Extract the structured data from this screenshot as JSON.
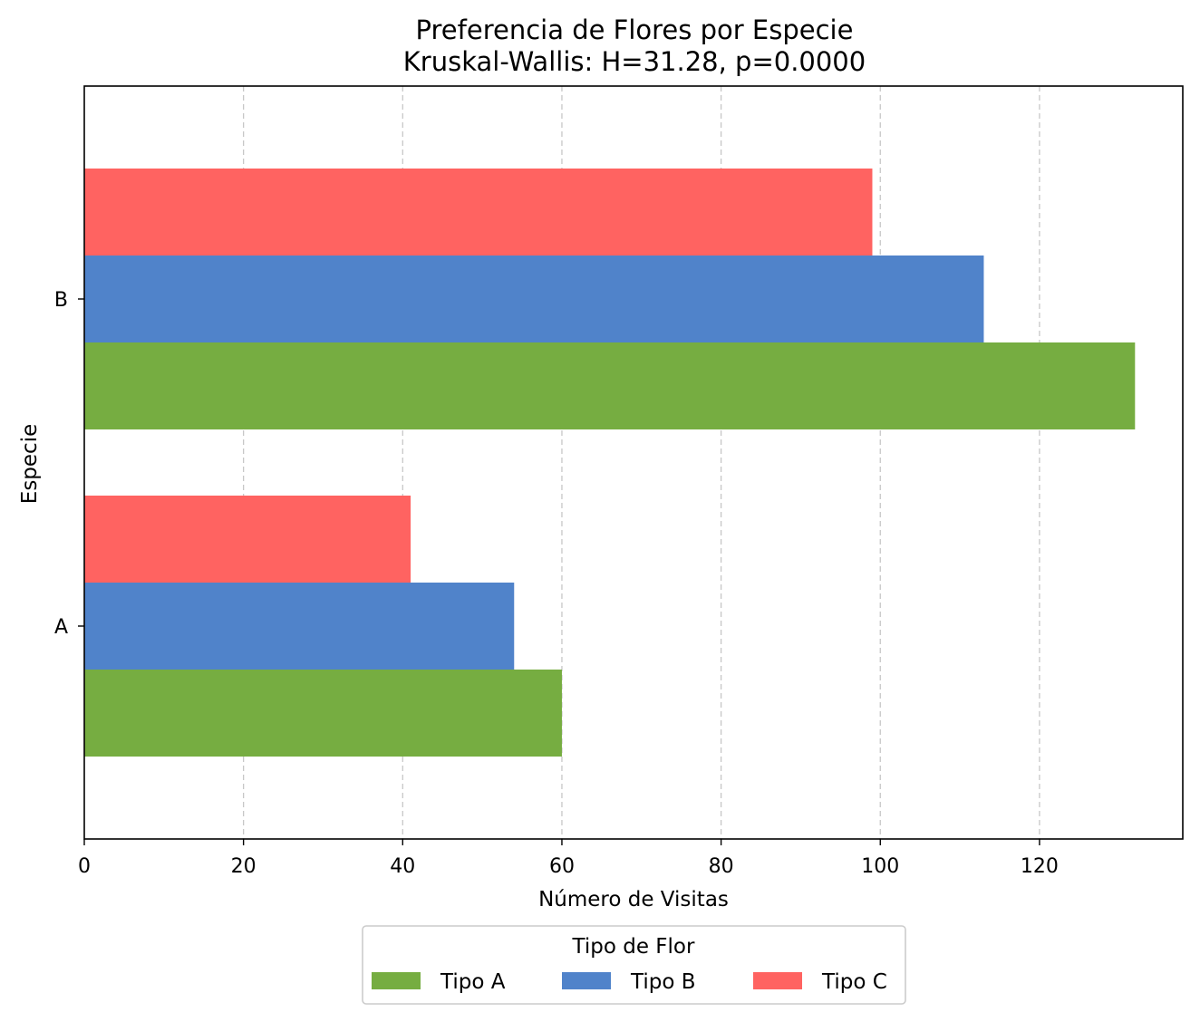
{
  "chart_data": {
    "type": "bar",
    "orientation": "horizontal",
    "title": "Preferencia de Flores por Especie",
    "subtitle": "Kruskal-Wallis: H=31.28, p=0.0000",
    "xlabel": "Número de Visitas",
    "ylabel": "Especie",
    "categories": [
      "A",
      "B"
    ],
    "xlim": [
      0,
      138
    ],
    "xticks": [
      0,
      20,
      40,
      60,
      80,
      100,
      120
    ],
    "grid": "x-dashed",
    "series": [
      {
        "name": "Tipo A",
        "color": "#76ad41",
        "values": [
          60,
          132
        ]
      },
      {
        "name": "Tipo B",
        "color": "#5083ca",
        "values": [
          54,
          113
        ]
      },
      {
        "name": "Tipo C",
        "color": "#ff6361",
        "values": [
          41,
          99
        ]
      }
    ],
    "legend": {
      "title": "Tipo de Flor",
      "placement": "bottom-center"
    }
  }
}
